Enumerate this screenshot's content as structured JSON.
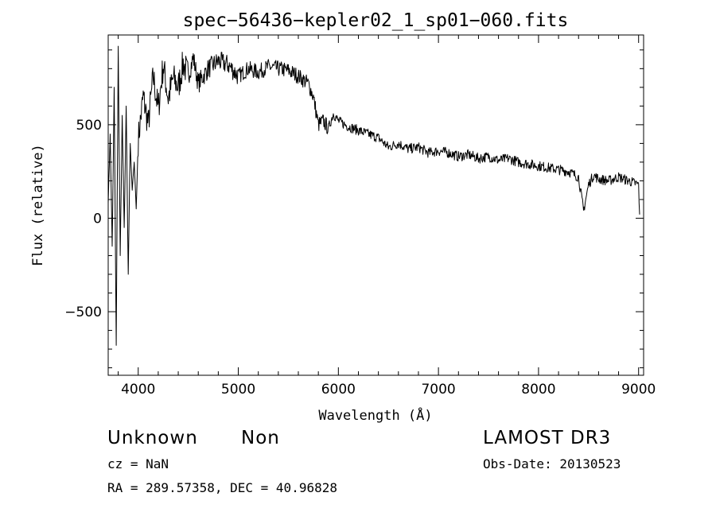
{
  "chart_data": {
    "type": "line",
    "title": "spec−56436−kepler02_1_sp01−060.fits",
    "xlabel": "Wavelength (Å)",
    "ylabel": "Flux (relative)",
    "xlim": [
      3700,
      9050
    ],
    "ylim": [
      -840,
      980
    ],
    "x_ticks": [
      4000,
      5000,
      6000,
      7000,
      8000,
      9000
    ],
    "x_tick_labels": [
      "4000",
      "5000",
      "6000",
      "7000",
      "8000",
      "9000"
    ],
    "y_ticks": [
      -500,
      0,
      500
    ],
    "y_tick_labels": [
      "−500",
      "0",
      "500"
    ],
    "series": [
      {
        "name": "flux",
        "x": [
          3700,
          3720,
          3740,
          3760,
          3780,
          3800,
          3820,
          3840,
          3860,
          3880,
          3900,
          3920,
          3940,
          3960,
          3980,
          4000,
          4050,
          4100,
          4150,
          4200,
          4250,
          4300,
          4350,
          4400,
          4450,
          4500,
          4550,
          4600,
          4700,
          4800,
          4900,
          5000,
          5100,
          5200,
          5300,
          5400,
          5500,
          5600,
          5700,
          5750,
          5800,
          5850,
          5900,
          5950,
          6000,
          6100,
          6200,
          6300,
          6400,
          6500,
          6600,
          6700,
          6800,
          6900,
          7000,
          7100,
          7200,
          7300,
          7400,
          7500,
          7600,
          7700,
          7800,
          7900,
          8000,
          8100,
          8200,
          8300,
          8400,
          8450,
          8500,
          8550,
          8600,
          8700,
          8800,
          8900,
          9000,
          9010
        ],
        "values": [
          80,
          450,
          -150,
          700,
          -680,
          920,
          -200,
          550,
          -50,
          600,
          -300,
          400,
          150,
          300,
          50,
          420,
          650,
          500,
          760,
          580,
          820,
          640,
          750,
          700,
          830,
          760,
          860,
          720,
          800,
          840,
          820,
          760,
          800,
          780,
          810,
          800,
          790,
          760,
          720,
          650,
          500,
          520,
          480,
          560,
          520,
          490,
          470,
          450,
          430,
          380,
          400,
          370,
          380,
          350,
          360,
          350,
          330,
          340,
          320,
          330,
          310,
          320,
          300,
          290,
          280,
          270,
          260,
          250,
          220,
          40,
          180,
          230,
          210,
          200,
          220,
          200,
          180,
          20
        ]
      }
    ]
  },
  "annotations": {
    "object_name": "Unknown",
    "object_class": "Non",
    "survey": "LAMOST DR3",
    "redshift": "cz = NaN",
    "obs_date": "Obs-Date: 20130523",
    "coords": "RA = 289.57358, DEC =  40.96828"
  }
}
